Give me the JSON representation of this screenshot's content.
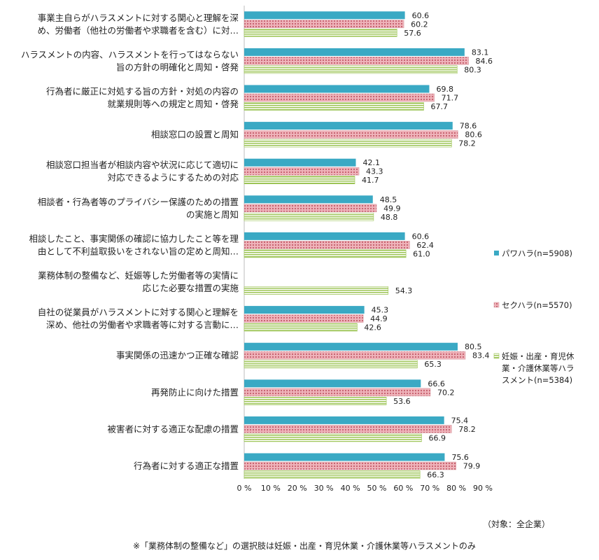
{
  "chart_data": {
    "type": "bar",
    "orientation": "horizontal",
    "categories": [
      [
        "事業主自らがハラスメントに対する関心と理解を深",
        "め、労働者（他社の労働者や求職者を含む）に対…"
      ],
      [
        "ハラスメントの内容、ハラスメントを行ってはならない",
        "旨の方針の明確化と周知・啓発"
      ],
      [
        "行為者に厳正に対処する旨の方針・対処の内容の",
        "就業規則等への規定と周知・啓発"
      ],
      [
        "相談窓口の設置と周知"
      ],
      [
        "相談窓口担当者が相談内容や状況に応じて適切に",
        "対応できるようにするための対応"
      ],
      [
        "相談者・行為者等のプライバシー保護のための措置",
        "の実施と周知"
      ],
      [
        "相談したこと、事実関係の確認に協力したこと等を理",
        "由として不利益取扱いをされない旨の定めと周知…"
      ],
      [
        "業務体制の整備など、妊娠等した労働者等の実情に",
        "応じた必要な措置の実施"
      ],
      [
        "自社の従業員がハラスメントに対する関心と理解を",
        "深め、他社の労働者や求職者等に対する言動に…"
      ],
      [
        "事実関係の迅速かつ正確な確認"
      ],
      [
        "再発防止に向けた措置"
      ],
      [
        "被害者に対する適正な配慮の措置"
      ],
      [
        "行為者に対する適正な措置"
      ]
    ],
    "series": [
      {
        "name": "パワハラ(n=5908)",
        "values": [
          60.6,
          83.1,
          69.8,
          78.6,
          42.1,
          48.5,
          60.6,
          null,
          45.3,
          80.5,
          66.6,
          75.4,
          75.6
        ],
        "labels": [
          "60.6",
          "83.1",
          "69.8",
          "78.6",
          "42.1",
          "48.5",
          "60.6",
          "",
          "45.3",
          "80.5",
          "66.6",
          "75.4",
          "75.6"
        ],
        "color": "#3aa9c4"
      },
      {
        "name": "セクハラ(n=5570)",
        "values": [
          60.2,
          84.6,
          71.7,
          80.6,
          43.3,
          49.9,
          62.4,
          null,
          44.9,
          83.4,
          70.2,
          78.2,
          79.9
        ],
        "labels": [
          "60.2",
          "84.6",
          "71.7",
          "80.6",
          "43.3",
          "49.9",
          "62.4",
          "",
          "44.9",
          "83.4",
          "70.2",
          "78.2",
          "79.9"
        ],
        "color": "#e08a94"
      },
      {
        "name": "妊娠・出産・育児休業・介護休業等ハラスメント(n=5384)",
        "legend_lines": [
          "妊娠・出産・育児休",
          "業・介護休業等ハラ",
          "スメント(n=5384)"
        ],
        "values": [
          57.6,
          80.3,
          67.7,
          78.2,
          41.7,
          48.8,
          61.0,
          54.3,
          42.6,
          65.3,
          53.6,
          66.9,
          66.3
        ],
        "labels": [
          "57.6",
          "80.3",
          "67.7",
          "78.2",
          "41.7",
          "48.8",
          "61.0",
          "54.3",
          "42.6",
          "65.3",
          "53.6",
          "66.9",
          "66.3"
        ],
        "color": "#a6c95c"
      }
    ],
    "xlim": [
      0,
      90
    ],
    "xticks": [
      "0 %",
      "10 %",
      "20 %",
      "30 %",
      "40 %",
      "50 %",
      "60 %",
      "70 %",
      "80 %",
      "90 %"
    ],
    "xlabel": "",
    "ylabel": "",
    "title": "",
    "legend_position": "right",
    "grid": false
  },
  "notes": {
    "target": "（対象：全企業）",
    "footer": "※「業務体制の整備など」の選択肢は妊娠・出産・育児休業・介護休業等ハラスメントのみ"
  }
}
